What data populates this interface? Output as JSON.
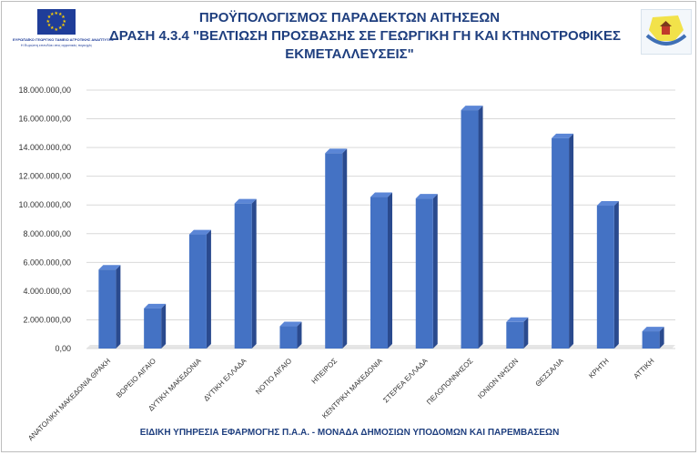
{
  "header": {
    "title_lines": [
      "ΠΡΟΫΠΟΛΟΓΙΣΜΟΣ ΠΑΡΑΔΕΚΤΩΝ ΑΙΤΗΣΕΩΝ",
      "ΔΡΑΣΗ 4.3.4 \"ΒΕΛΤΙΩΣΗ ΠΡΟΣΒΑΣΗΣ ΣΕ ΓΕΩΡΓΙΚΗ ΓΗ ΚΑΙ ΚΤΗΝΟΤΡΟΦΙΚΕΣ",
      "ΕΚΜΕΤΑΛΛΕΥΣΕΙΣ\""
    ],
    "logo_left_caption": [
      "ΕΥΡΩΠΑΪΚΟ ΓΕΩΡΓΙΚΟ ΤΑΜΕΙΟ ΑΓΡΟΤΙΚΗΣ ΑΝΑΠΤΥΞΗΣ",
      "Η Ευρώπη επενδύει στις αγροτικές περιοχές"
    ]
  },
  "footer": {
    "text": "ΕΙΔΙΚΗ ΥΠΗΡΕΣΙΑ ΕΦΑΡΜΟΓΗΣ Π.Α.Α. - ΜΟΝΑΔΑ ΔΗΜΟΣΙΩΝ ΥΠΟΔΟΜΩΝ ΚΑΙ ΠΑΡΕΜΒΑΣΕΩΝ"
  },
  "colors": {
    "bar_front": "#4472c4",
    "bar_top": "#5b86d6",
    "bar_side": "#2a4a8e",
    "title": "#1f3f7f",
    "grid": "#d9d9d9"
  },
  "chart_data": {
    "type": "bar",
    "categories": [
      "ΑΝΑΤΟΛΙΚΗ ΜΑΚΕΔΟΝΙΑ ΘΡΑΚΗ",
      "ΒΟΡΕΙΟ ΑΙΓΑΙΟ",
      "ΔΥΤΙΚΗ ΜΑΚΕΔΟΝΙΑ",
      "ΔΥΤΙΚΗ ΕΛΛΑΔΑ",
      "ΝΟΤΙΟ ΑΙΓΑΙΟ",
      "ΗΠΕΙΡΟΣ",
      "ΚΕΝΤΡΙΚΗ ΜΑΚΕΔΟΝΙΑ",
      "ΣΤΕΡΕΑ ΕΛΛΑΔΑ",
      "ΠΕΛΟΠΟΝΝΗΣΟΣ",
      "ΙΟΝΙΩΝ ΝΗΣΩΝ",
      "ΘΕΣΣΑΛΙΑ",
      "ΚΡΗΤΗ",
      "ΑΤΤΙΚΗ"
    ],
    "values": [
      5500000,
      2800000,
      7950000,
      10100000,
      1550000,
      13600000,
      10550000,
      10450000,
      16600000,
      1850000,
      14650000,
      9950000,
      1200000
    ],
    "ylim": [
      0,
      18000000
    ],
    "yticks": [
      0,
      2000000,
      4000000,
      6000000,
      8000000,
      10000000,
      12000000,
      14000000,
      16000000,
      18000000
    ],
    "ytick_labels": [
      "0,00",
      "2.000.000,00",
      "4.000.000,00",
      "6.000.000,00",
      "8.000.000,00",
      "10.000.000,00",
      "12.000.000,00",
      "14.000.000,00",
      "16.000.000,00",
      "18.000.000,00"
    ],
    "grid": true,
    "legend": "none",
    "style": "3d-column"
  }
}
